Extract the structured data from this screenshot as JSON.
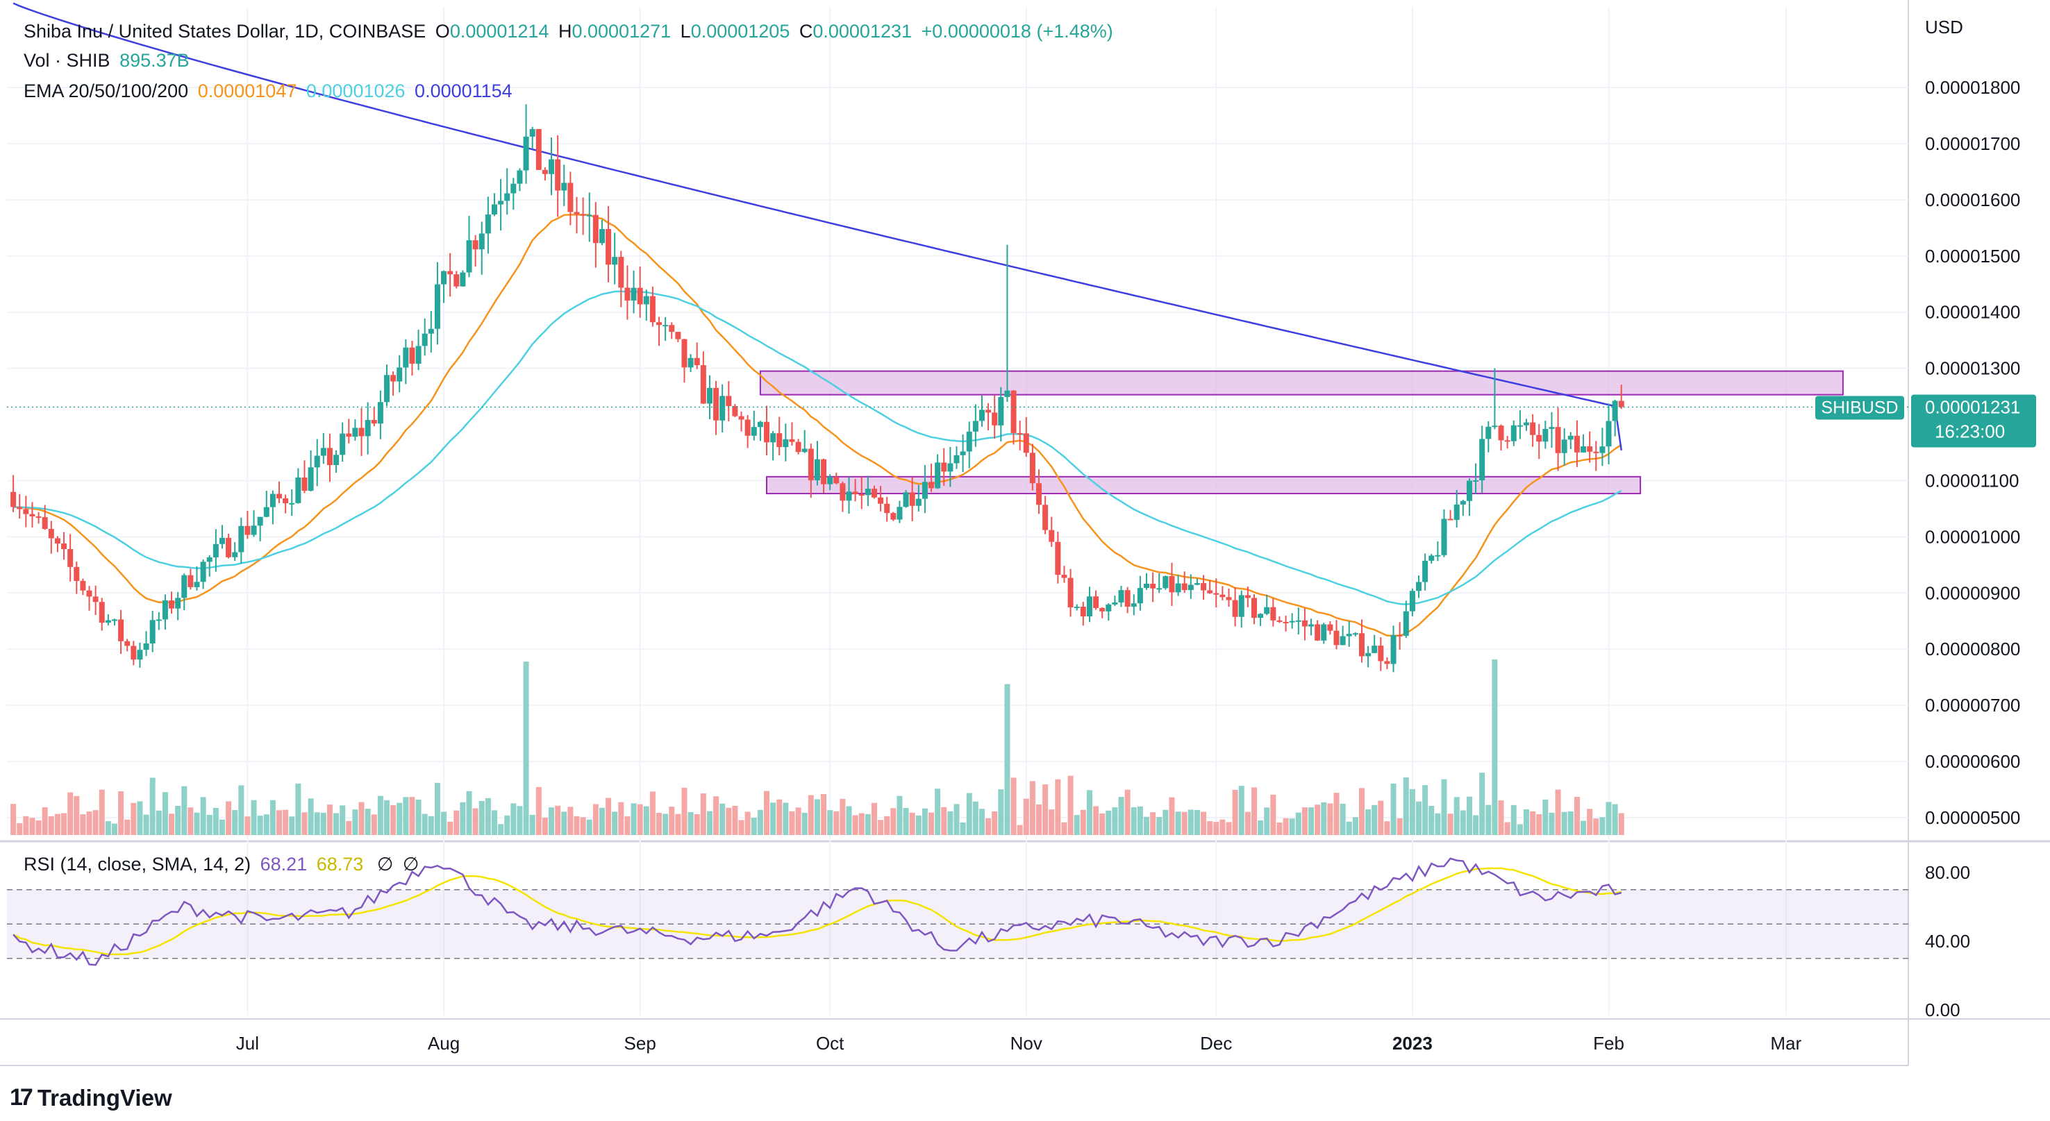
{
  "header": {
    "symbol": "Shiba Inu / United States Dollar, 1D, COINBASE",
    "o_label": "O",
    "o_value": "0.00001214",
    "h_label": "H",
    "h_value": "0.00001271",
    "l_label": "L",
    "l_value": "0.00001205",
    "c_label": "C",
    "c_value": "0.00001231",
    "change": "+0.00000018 (+1.48%)",
    "vol_label": "Vol · SHIB",
    "vol_value": "895.37B",
    "ema_label": "EMA 20/50/100/200",
    "ema20": "0.00001047",
    "ema50": "0.00001026",
    "ema100": "0.00001154"
  },
  "rsi_header": {
    "label": "RSI (14, close, SMA, 14, 2)",
    "rsi_value": "68.21",
    "sma_value": "68.73",
    "icon1": "∅",
    "icon2": "∅"
  },
  "price_axis": {
    "currency": "USD",
    "ticks": [
      "0.00001800",
      "0.00001700",
      "0.00001600",
      "0.00001500",
      "0.00001400",
      "0.00001300",
      "0.00001100",
      "0.00001000",
      "0.00000900",
      "0.00000800",
      "0.00000700",
      "0.00000600",
      "0.00000500"
    ],
    "symbol_tag": "SHIBUSD",
    "last_price": "0.00001231",
    "countdown": "16:23:00"
  },
  "rsi_axis": {
    "ticks": [
      "80.00",
      "40.00",
      "0.00"
    ]
  },
  "time_axis": {
    "labels": [
      "Jul",
      "Aug",
      "Sep",
      "Oct",
      "Nov",
      "Dec",
      "2023",
      "Feb",
      "Mar"
    ]
  },
  "brand": {
    "name": "TradingView",
    "logo": "17"
  },
  "colors": {
    "up": "#26a69a",
    "down": "#ef5350",
    "ema20": "#f7931a",
    "ema50": "#4dd0e1",
    "ema100": "#3f3fe0",
    "rsi": "#7e57c2",
    "rsi_sma": "#f5e400",
    "zone_fill": "#e1bee7",
    "zone_stroke": "#9c27b0",
    "vol_up": "#8ed1c8",
    "vol_down": "#f4a7a5",
    "tag_bg": "#26a69a"
  },
  "chart_data": [
    {
      "type": "candlestick",
      "title": "Shiba Inu / United States Dollar, 1D, COINBASE",
      "ylabel": "USD",
      "ylim": [
        4.7e-06,
        1.9e-05
      ],
      "xlim": [
        "2022-05-24",
        "2023-03-20"
      ],
      "anchors": [
        "2022-06-13",
        "2022-06-22",
        "2022-07-20",
        "2022-08-14",
        "2022-09-13",
        "2022-10-10",
        "2022-10-29",
        "2022-11-08",
        "2022-11-24",
        "2022-12-13",
        "2022-12-28",
        "2023-01-14",
        "2023-01-28",
        "2023-02-03"
      ],
      "anchor_close": [
        7.9e-06,
        9.3e-06,
        1.2e-05,
        1.7e-05,
        1.23e-05,
        1.04e-05,
        1.24e-05,
        8.7e-06,
        9.1e-06,
        8.5e-06,
        7.9e-06,
        1.2e-05,
        1.15e-05,
        1.23e-05
      ],
      "volume_up_to": "895.37B",
      "overlays": [
        {
          "name": "EMA 20",
          "last": 1.047e-05
        },
        {
          "name": "EMA 50",
          "last": 1.026e-05
        },
        {
          "name": "EMA 100",
          "last": 1.154e-05
        }
      ],
      "zones": [
        {
          "from": "2022-09-20",
          "to": "2023-03-10",
          "low": 1.253e-05,
          "high": 1.295e-05
        },
        {
          "from": "2022-09-21",
          "to": "2023-02-06",
          "low": 1.077e-05,
          "high": 1.107e-05
        }
      ]
    },
    {
      "type": "line",
      "title": "RSI (14, close, SMA, 14, 2)",
      "ylim": [
        0,
        100
      ],
      "bands": [
        30,
        50,
        70
      ],
      "series": [
        {
          "name": "RSI",
          "last": 68.21,
          "anchors": [
            40,
            28,
            60,
            52,
            57,
            88,
            50,
            47,
            42,
            44,
            72,
            36,
            48,
            53,
            40,
            41,
            67,
            88,
            65,
            70
          ]
        },
        {
          "name": "SMA",
          "last": 68.73
        }
      ]
    }
  ]
}
